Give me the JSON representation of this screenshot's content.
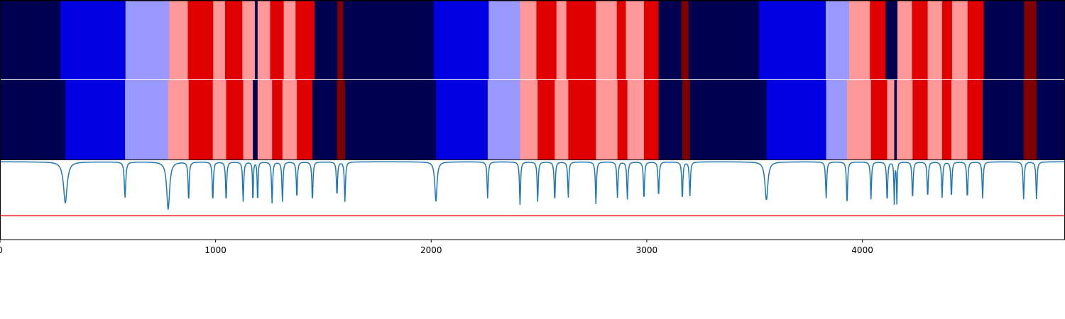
{
  "chart_data": {
    "type": "heatmap",
    "xlim": [
      0,
      4940
    ],
    "x_ticks": [
      0,
      1000,
      2000,
      3000,
      4000
    ],
    "x_tick_labels": [
      "0",
      "1000",
      "2000",
      "3000",
      "4000"
    ],
    "colors": {
      "dark_navy": "#000050",
      "blue": "#0000e0",
      "light_blue": "#9999ff",
      "pink": "#ff9999",
      "red": "#e00000",
      "dark_red": "#800000",
      "curve": "#1f77b4",
      "threshold": "#e8141c"
    },
    "rows": [
      {
        "segments": [
          [
            0,
            280,
            "dark_navy"
          ],
          [
            280,
            582,
            "blue"
          ],
          [
            582,
            786,
            "light_blue"
          ],
          [
            786,
            871,
            "pink"
          ],
          [
            871,
            989,
            "red"
          ],
          [
            989,
            1044,
            "pink"
          ],
          [
            1044,
            1124,
            "red"
          ],
          [
            1124,
            1182,
            "pink"
          ],
          [
            1182,
            1195,
            "dark_navy"
          ],
          [
            1195,
            1253,
            "pink"
          ],
          [
            1253,
            1316,
            "red"
          ],
          [
            1316,
            1371,
            "pink"
          ],
          [
            1371,
            1459,
            "red"
          ],
          [
            1459,
            1565,
            "dark_navy"
          ],
          [
            1565,
            1592,
            "dark_red"
          ],
          [
            1592,
            2012,
            "dark_navy"
          ],
          [
            2012,
            2267,
            "blue"
          ],
          [
            2267,
            2412,
            "light_blue"
          ],
          [
            2412,
            2488,
            "pink"
          ],
          [
            2488,
            2581,
            "red"
          ],
          [
            2581,
            2627,
            "pink"
          ],
          [
            2627,
            2764,
            "red"
          ],
          [
            2764,
            2861,
            "pink"
          ],
          [
            2861,
            2903,
            "red"
          ],
          [
            2903,
            2987,
            "pink"
          ],
          [
            2987,
            3055,
            "red"
          ],
          [
            3055,
            3160,
            "dark_navy"
          ],
          [
            3160,
            3194,
            "dark_red"
          ],
          [
            3194,
            3520,
            "dark_navy"
          ],
          [
            3520,
            3830,
            "blue"
          ],
          [
            3830,
            3939,
            "light_blue"
          ],
          [
            3939,
            4035,
            "pink"
          ],
          [
            4035,
            4108,
            "red"
          ],
          [
            4108,
            4163,
            "dark_navy"
          ],
          [
            4163,
            4230,
            "pink"
          ],
          [
            4230,
            4303,
            "red"
          ],
          [
            4303,
            4370,
            "pink"
          ],
          [
            4370,
            4416,
            "red"
          ],
          [
            4416,
            4488,
            "pink"
          ],
          [
            4488,
            4563,
            "red"
          ],
          [
            4563,
            4750,
            "dark_navy"
          ],
          [
            4750,
            4807,
            "dark_red"
          ],
          [
            4807,
            4940,
            "dark_navy"
          ]
        ]
      },
      {
        "segments": [
          [
            0,
            303,
            "dark_navy"
          ],
          [
            303,
            580,
            "blue"
          ],
          [
            580,
            780,
            "light_blue"
          ],
          [
            780,
            875,
            "pink"
          ],
          [
            875,
            987,
            "red"
          ],
          [
            987,
            1049,
            "pink"
          ],
          [
            1049,
            1128,
            "red"
          ],
          [
            1128,
            1173,
            "pink"
          ],
          [
            1173,
            1195,
            "dark_navy"
          ],
          [
            1195,
            1262,
            "pink"
          ],
          [
            1262,
            1310,
            "red"
          ],
          [
            1310,
            1377,
            "pink"
          ],
          [
            1377,
            1449,
            "red"
          ],
          [
            1449,
            1563,
            "dark_navy"
          ],
          [
            1563,
            1600,
            "dark_red"
          ],
          [
            1600,
            2022,
            "dark_navy"
          ],
          [
            2022,
            2262,
            "blue"
          ],
          [
            2262,
            2412,
            "light_blue"
          ],
          [
            2412,
            2494,
            "pink"
          ],
          [
            2494,
            2573,
            "red"
          ],
          [
            2573,
            2636,
            "pink"
          ],
          [
            2636,
            2764,
            "red"
          ],
          [
            2764,
            2864,
            "pink"
          ],
          [
            2864,
            2910,
            "red"
          ],
          [
            2910,
            2987,
            "pink"
          ],
          [
            2987,
            3055,
            "red"
          ],
          [
            3055,
            3165,
            "dark_navy"
          ],
          [
            3165,
            3200,
            "dark_red"
          ],
          [
            3200,
            3555,
            "dark_navy"
          ],
          [
            3555,
            3832,
            "blue"
          ],
          [
            3832,
            3929,
            "light_blue"
          ],
          [
            3929,
            4040,
            "pink"
          ],
          [
            4040,
            4115,
            "red"
          ],
          [
            4115,
            4148,
            "pink"
          ],
          [
            4148,
            4160,
            "dark_navy"
          ],
          [
            4160,
            4233,
            "pink"
          ],
          [
            4233,
            4303,
            "red"
          ],
          [
            4303,
            4370,
            "pink"
          ],
          [
            4370,
            4413,
            "red"
          ],
          [
            4413,
            4487,
            "pink"
          ],
          [
            4487,
            4558,
            "red"
          ],
          [
            4558,
            4748,
            "dark_navy"
          ],
          [
            4748,
            4808,
            "dark_red"
          ],
          [
            4808,
            4940,
            "dark_navy"
          ]
        ]
      }
    ],
    "curve": {
      "ylim": [
        -0.98,
        0.02
      ],
      "baseline": 0,
      "threshold": -0.68,
      "dips": [
        [
          303,
          0.52,
          10
        ],
        [
          580,
          0.45,
          4
        ],
        [
          780,
          0.6,
          8
        ],
        [
          875,
          0.5,
          3
        ],
        [
          987,
          0.5,
          3
        ],
        [
          1049,
          0.5,
          3
        ],
        [
          1128,
          0.5,
          3
        ],
        [
          1173,
          0.55,
          2
        ],
        [
          1195,
          0.55,
          2
        ],
        [
          1262,
          0.52,
          3
        ],
        [
          1310,
          0.5,
          3
        ],
        [
          1377,
          0.46,
          3
        ],
        [
          1449,
          0.5,
          3
        ],
        [
          1563,
          0.43,
          3
        ],
        [
          1600,
          0.5,
          3
        ],
        [
          2022,
          0.5,
          6
        ],
        [
          2262,
          0.46,
          3
        ],
        [
          2412,
          0.54,
          3
        ],
        [
          2494,
          0.5,
          3
        ],
        [
          2573,
          0.5,
          3
        ],
        [
          2636,
          0.45,
          3
        ],
        [
          2764,
          0.53,
          3
        ],
        [
          2864,
          0.45,
          3
        ],
        [
          2910,
          0.47,
          3
        ],
        [
          2987,
          0.48,
          3
        ],
        [
          3055,
          0.44,
          3
        ],
        [
          3165,
          0.48,
          3
        ],
        [
          3200,
          0.43,
          3
        ],
        [
          3555,
          0.48,
          8
        ],
        [
          3832,
          0.46,
          3
        ],
        [
          3929,
          0.54,
          3
        ],
        [
          4040,
          0.47,
          3
        ],
        [
          4115,
          0.5,
          3
        ],
        [
          4148,
          0.52,
          2
        ],
        [
          4160,
          0.52,
          2
        ],
        [
          4233,
          0.47,
          3
        ],
        [
          4303,
          0.45,
          3
        ],
        [
          4370,
          0.45,
          3
        ],
        [
          4413,
          0.45,
          3
        ],
        [
          4487,
          0.46,
          3
        ],
        [
          4558,
          0.46,
          3
        ],
        [
          4748,
          0.47,
          3
        ],
        [
          4808,
          0.47,
          3
        ]
      ]
    }
  }
}
